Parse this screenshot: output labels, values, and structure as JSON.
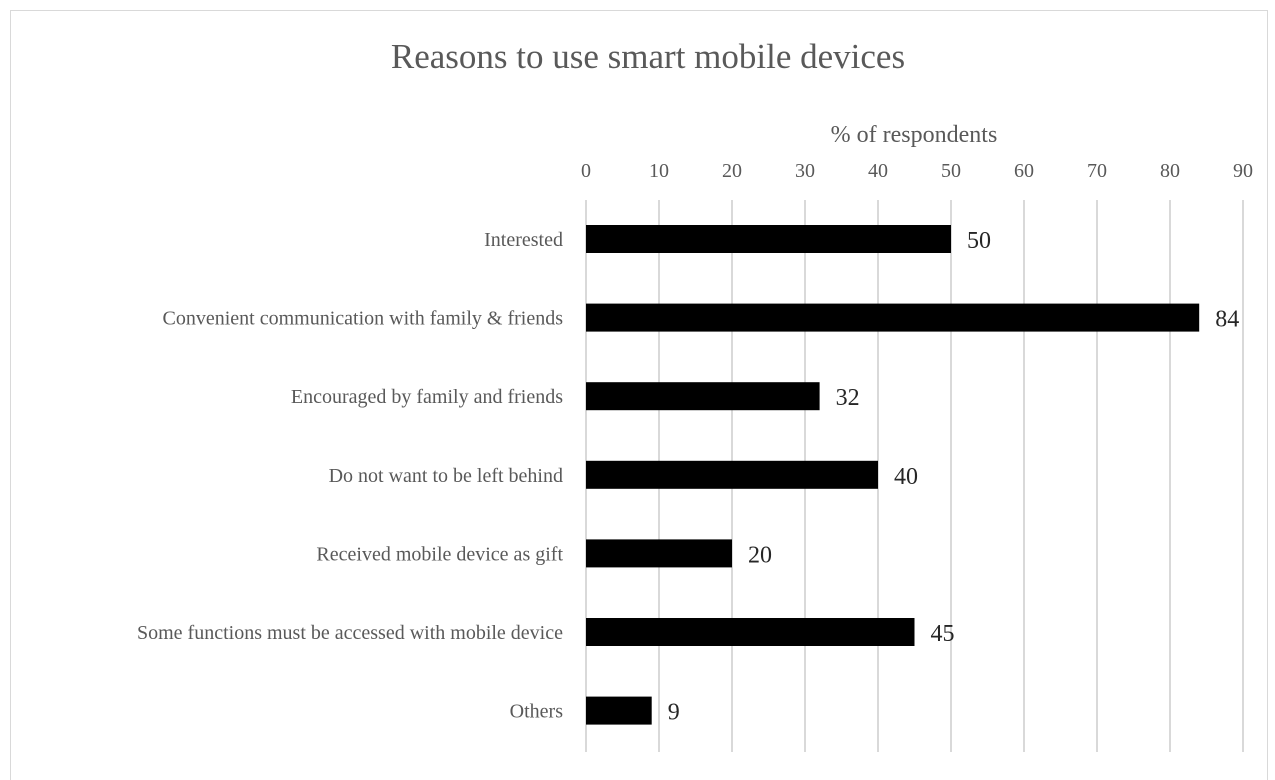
{
  "chart_data": {
    "type": "bar",
    "orientation": "horizontal",
    "title": "Reasons to use smart mobile devices",
    "xlabel": "% of respondents",
    "ylabel": "",
    "x_axis_position": "top",
    "xlim": [
      0,
      90
    ],
    "xticks": [
      0,
      10,
      20,
      30,
      40,
      50,
      60,
      70,
      80,
      90
    ],
    "grid": true,
    "legend": "none",
    "bar_color": "#000000",
    "categories": [
      "Interested",
      "Convenient communication with family & friends",
      "Encouraged by family and friends",
      "Do not want to be left behind",
      "Received mobile device as gift",
      "Some functions must be accessed with mobile device",
      "Others"
    ],
    "values": [
      50,
      84,
      32,
      40,
      20,
      45,
      9
    ],
    "data_labels": [
      "50",
      "84",
      "32",
      "40",
      "20",
      "45",
      "9"
    ]
  }
}
